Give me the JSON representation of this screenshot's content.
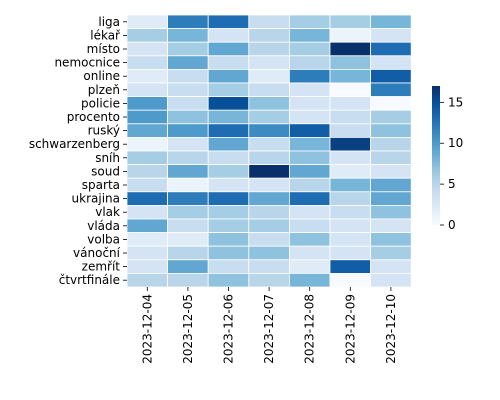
{
  "chart_data": {
    "type": "heatmap",
    "title": "",
    "xlabel": "",
    "ylabel": "",
    "x_labels": [
      "2023-12-04",
      "2023-12-05",
      "2023-12-06",
      "2023-12-07",
      "2023-12-08",
      "2023-12-09",
      "2023-12-10"
    ],
    "y_labels": [
      "liga",
      "lékař",
      "místo",
      "nemocnice",
      "online",
      "plzeň",
      "policie",
      "procento",
      "ruský",
      "schwarzenberg",
      "sníh",
      "soud",
      "sparta",
      "ukrajina",
      "vlak",
      "vláda",
      "volba",
      "vánoční",
      "zemřít",
      "čtvrtfinále"
    ],
    "values": [
      [
        2,
        12,
        13,
        4,
        6,
        6,
        8
      ],
      [
        6,
        8,
        3,
        5,
        8,
        1,
        3
      ],
      [
        3,
        6,
        9,
        5,
        6,
        17,
        13
      ],
      [
        4,
        9,
        4,
        3,
        5,
        7,
        3
      ],
      [
        2,
        4,
        9,
        2,
        12,
        8,
        14
      ],
      [
        3,
        4,
        6,
        4,
        3,
        0,
        12
      ],
      [
        10,
        4,
        15,
        7,
        3,
        3,
        0
      ],
      [
        10,
        7,
        8,
        6,
        3,
        4,
        6
      ],
      [
        9,
        10,
        13,
        11,
        14,
        4,
        7
      ],
      [
        1,
        3,
        9,
        4,
        8,
        16,
        5
      ],
      [
        6,
        5,
        4,
        5,
        7,
        3,
        5
      ],
      [
        5,
        9,
        6,
        17,
        9,
        2,
        3
      ],
      [
        4,
        1,
        3,
        3,
        5,
        8,
        9
      ],
      [
        13,
        12,
        13,
        9,
        13,
        5,
        9
      ],
      [
        3,
        6,
        6,
        5,
        3,
        4,
        7
      ],
      [
        9,
        4,
        6,
        6,
        4,
        3,
        3
      ],
      [
        2,
        2,
        7,
        4,
        7,
        3,
        7
      ],
      [
        3,
        5,
        7,
        7,
        3,
        3,
        6
      ],
      [
        3,
        9,
        4,
        4,
        2,
        14,
        3
      ],
      [
        5,
        5,
        7,
        5,
        8,
        0,
        3
      ]
    ],
    "colorbar": {
      "min": 0,
      "max": 17,
      "ticks": [
        0,
        5,
        10,
        15
      ],
      "colormap": "Blues"
    },
    "grid": false,
    "cell_border_color": "#ffffff"
  }
}
